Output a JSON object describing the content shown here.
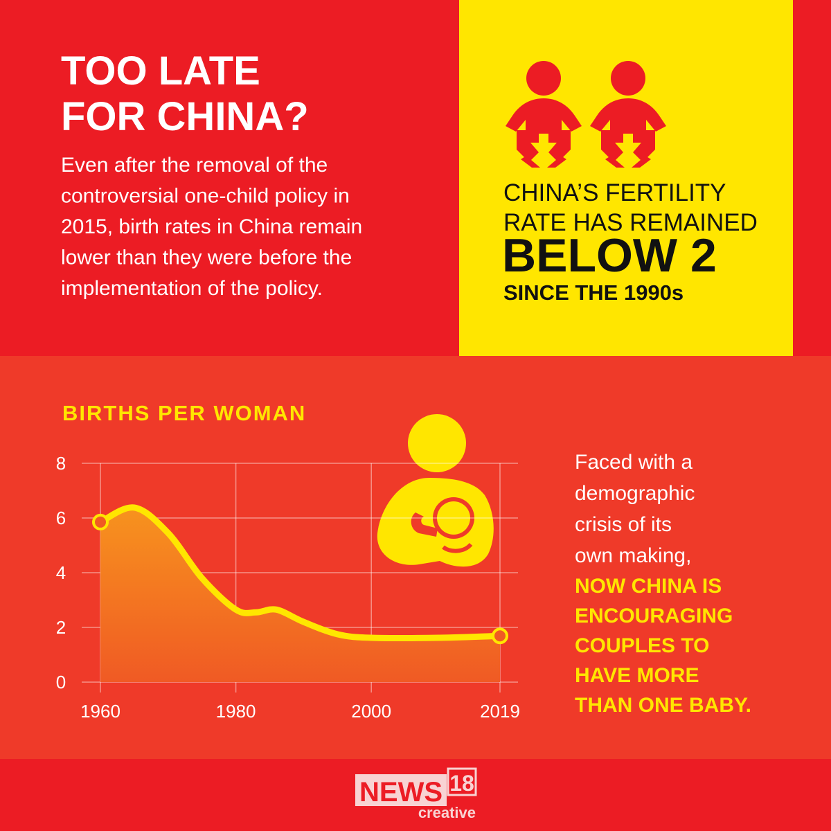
{
  "header": {
    "title": [
      "TOO LATE",
      "FOR CHINA?"
    ],
    "body": [
      "Even after the removal of the",
      "controversial one-child policy in",
      "2015, birth rates in China remain",
      "lower than they were before the",
      "implementation of the policy."
    ]
  },
  "callout": {
    "lines": [
      "CHINA’S FERTILITY",
      "RATE HAS REMAINED"
    ],
    "highlight": "BELOW 2",
    "footnote": "SINCE THE 1990s"
  },
  "chart_data": {
    "type": "line",
    "title": "BIRTHS PER WOMAN",
    "x": [
      1960,
      1965,
      1970,
      1975,
      1980,
      1983,
      1986,
      1990,
      1995,
      2000,
      2010,
      2019
    ],
    "values": [
      5.85,
      6.38,
      5.45,
      3.8,
      2.65,
      2.55,
      2.65,
      2.2,
      1.75,
      1.62,
      1.62,
      1.69
    ],
    "color": "#ffe600",
    "xlim": [
      1960,
      2019
    ],
    "xticks": [
      1960,
      1980,
      2000,
      2019
    ],
    "ylim": [
      0,
      8
    ],
    "yticks": [
      0,
      2,
      4,
      6,
      8
    ],
    "grid": true
  },
  "side_note": {
    "lines": [
      "Faced with a",
      "demographic",
      "crisis of its",
      "own making,"
    ],
    "emphasis": [
      "NOW CHINA IS",
      "ENCOURAGING",
      "COUPLES TO",
      "HAVE MORE",
      "THAN ONE BABY."
    ]
  },
  "logo": {
    "brand": "NEWS",
    "number": "18",
    "tagline": "creative"
  }
}
